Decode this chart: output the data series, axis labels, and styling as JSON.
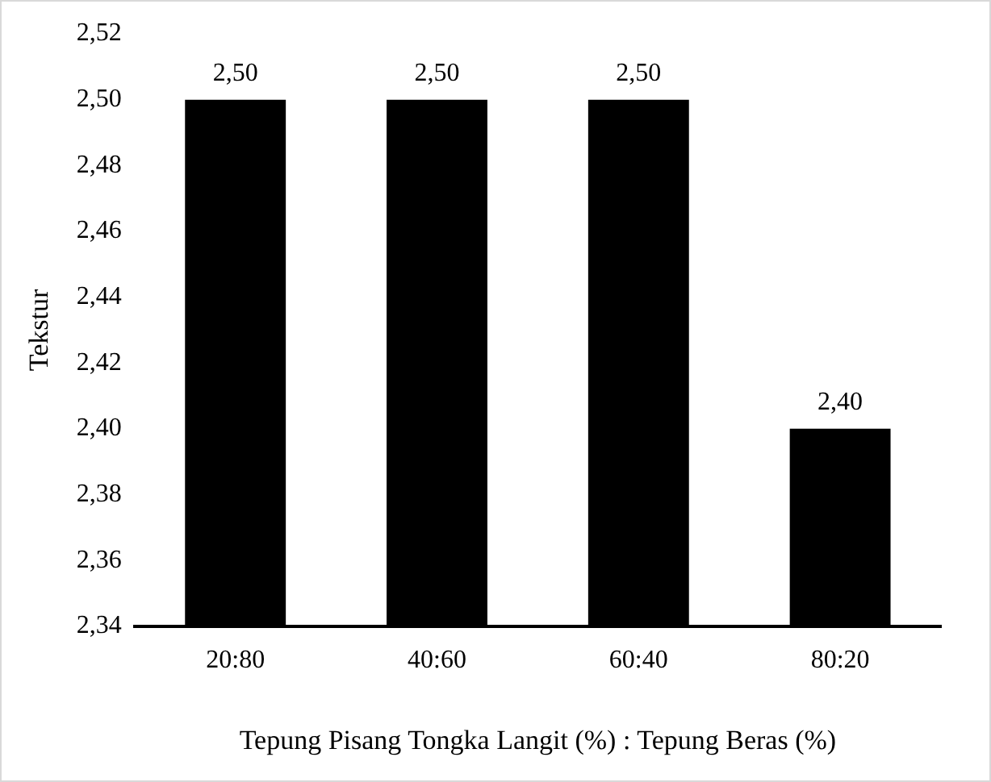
{
  "chart_data": {
    "type": "bar",
    "xlabel": "Tepung Pisang Tongka Langit (%) : Tepung Beras (%)",
    "ylabel": "Tekstur",
    "categories": [
      "20:80",
      "40:60",
      "60:40",
      "80:20"
    ],
    "values": [
      2.5,
      2.5,
      2.5,
      2.4
    ],
    "value_labels": [
      "2,50",
      "2,50",
      "2,50",
      "2,40"
    ],
    "color": "#000000",
    "ylim": [
      2.34,
      2.52
    ],
    "yticks": [
      {
        "value": 2.34,
        "label": "2,34"
      },
      {
        "value": 2.36,
        "label": "2,36"
      },
      {
        "value": 2.38,
        "label": "2,38"
      },
      {
        "value": 2.4,
        "label": "2,40"
      },
      {
        "value": 2.42,
        "label": "2,42"
      },
      {
        "value": 2.44,
        "label": "2,44"
      },
      {
        "value": 2.46,
        "label": "2,46"
      },
      {
        "value": 2.48,
        "label": "2,48"
      },
      {
        "value": 2.5,
        "label": "2,50"
      },
      {
        "value": 2.52,
        "label": "2,52"
      }
    ],
    "grid": false,
    "legend": false
  }
}
